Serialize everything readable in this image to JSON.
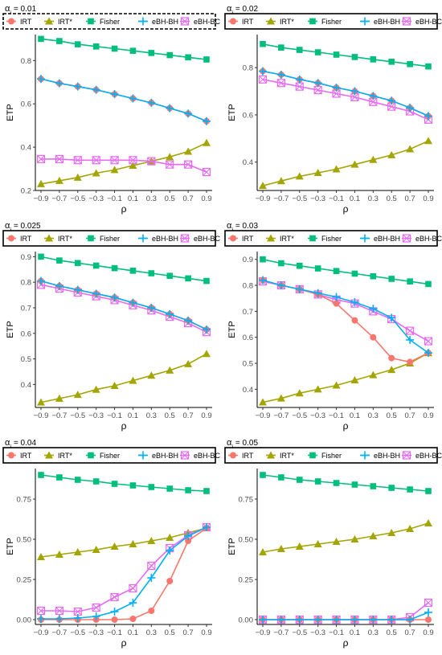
{
  "colors": {
    "IRT": "#F8766D",
    "IRT*": "#A3A500",
    "Fisher": "#00BF7D",
    "eBH-BH": "#00B0F6",
    "eBH-BC": "#E76BF3"
  },
  "legend_items": [
    "IRT",
    "IRT*",
    "Fisher",
    "eBH-BH",
    "eBH-BC"
  ],
  "chart_data": [
    {
      "type": "line",
      "panel_title": "αj = 0.01",
      "xlabel": "ρ",
      "ylabel": "ETP",
      "x": [
        -0.9,
        -0.7,
        -0.5,
        -0.3,
        -0.1,
        0.1,
        0.3,
        0.5,
        0.7,
        0.9
      ],
      "x_tick_labels": [
        "−0.9",
        "−0.7",
        "−0.5",
        "−0.3",
        "−0.1",
        "0.1",
        "0.3",
        "0.5",
        "0.7",
        "0.9"
      ],
      "ylim": [
        0.2,
        0.92
      ],
      "yticks": [
        0.2,
        0.4,
        0.6,
        0.8
      ],
      "y_tick_labels": [
        "0.2",
        "0.4",
        "0.6",
        "0.8"
      ],
      "legend_position": "top",
      "legend_box": "dashed",
      "series": [
        {
          "name": "IRT",
          "values": [
            0.715,
            0.695,
            0.68,
            0.665,
            0.645,
            0.625,
            0.605,
            0.58,
            0.555,
            0.52
          ]
        },
        {
          "name": "IRT*",
          "values": [
            0.23,
            0.245,
            0.26,
            0.28,
            0.295,
            0.315,
            0.335,
            0.355,
            0.38,
            0.42
          ]
        },
        {
          "name": "Fisher",
          "values": [
            0.9,
            0.89,
            0.875,
            0.865,
            0.855,
            0.845,
            0.835,
            0.825,
            0.815,
            0.805
          ]
        },
        {
          "name": "eBH-BH",
          "values": [
            0.715,
            0.695,
            0.68,
            0.665,
            0.645,
            0.625,
            0.605,
            0.58,
            0.555,
            0.52
          ]
        },
        {
          "name": "eBH-BC",
          "values": [
            0.345,
            0.345,
            0.34,
            0.34,
            0.34,
            0.34,
            0.335,
            0.32,
            0.32,
            0.285
          ]
        }
      ]
    },
    {
      "type": "line",
      "panel_title": "αj = 0.02",
      "xlabel": "ρ",
      "ylabel": "ETP",
      "x": [
        -0.9,
        -0.7,
        -0.5,
        -0.3,
        -0.1,
        0.1,
        0.3,
        0.5,
        0.7,
        0.9
      ],
      "x_tick_labels": [
        "−0.9",
        "−0.7",
        "−0.5",
        "−0.3",
        "−0.1",
        "0.1",
        "0.3",
        "0.5",
        "0.7",
        "0.9"
      ],
      "ylim": [
        0.28,
        0.94
      ],
      "yticks": [
        0.4,
        0.6,
        0.8
      ],
      "y_tick_labels": [
        "0.4",
        "0.6",
        "0.8"
      ],
      "legend_position": "top",
      "legend_box": "solid",
      "series": [
        {
          "name": "IRT",
          "values": [
            0.785,
            0.77,
            0.75,
            0.735,
            0.715,
            0.7,
            0.68,
            0.66,
            0.63,
            0.595
          ]
        },
        {
          "name": "IRT*",
          "values": [
            0.3,
            0.32,
            0.34,
            0.355,
            0.37,
            0.39,
            0.41,
            0.43,
            0.455,
            0.49
          ]
        },
        {
          "name": "Fisher",
          "values": [
            0.9,
            0.885,
            0.875,
            0.865,
            0.855,
            0.845,
            0.835,
            0.825,
            0.815,
            0.805
          ]
        },
        {
          "name": "eBH-BH",
          "values": [
            0.785,
            0.77,
            0.75,
            0.735,
            0.715,
            0.7,
            0.68,
            0.66,
            0.63,
            0.595
          ]
        },
        {
          "name": "eBH-BC",
          "values": [
            0.75,
            0.735,
            0.72,
            0.705,
            0.69,
            0.675,
            0.655,
            0.635,
            0.615,
            0.58
          ]
        }
      ]
    },
    {
      "type": "line",
      "panel_title": "αj = 0.025",
      "xlabel": "ρ",
      "ylabel": "ETP",
      "x": [
        -0.9,
        -0.7,
        -0.5,
        -0.3,
        -0.1,
        0.1,
        0.3,
        0.5,
        0.7,
        0.9
      ],
      "x_tick_labels": [
        "−0.9",
        "−0.7",
        "−0.5",
        "−0.3",
        "−0.1",
        "0.1",
        "0.3",
        "0.5",
        "0.7",
        "0.9"
      ],
      "ylim": [
        0.31,
        0.92
      ],
      "yticks": [
        0.4,
        0.5,
        0.6,
        0.7,
        0.8,
        0.9
      ],
      "y_tick_labels": [
        "0.4",
        "0.5",
        "0.6",
        "0.7",
        "0.8",
        "0.9"
      ],
      "legend_position": "top",
      "legend_box": "solid",
      "series": [
        {
          "name": "IRT",
          "values": [
            0.805,
            0.785,
            0.77,
            0.755,
            0.74,
            0.72,
            0.7,
            0.675,
            0.65,
            0.615
          ]
        },
        {
          "name": "IRT*",
          "values": [
            0.33,
            0.345,
            0.36,
            0.38,
            0.395,
            0.415,
            0.435,
            0.455,
            0.48,
            0.52
          ]
        },
        {
          "name": "Fisher",
          "values": [
            0.9,
            0.885,
            0.875,
            0.865,
            0.855,
            0.845,
            0.835,
            0.825,
            0.815,
            0.805
          ]
        },
        {
          "name": "eBH-BH",
          "values": [
            0.805,
            0.785,
            0.77,
            0.755,
            0.74,
            0.72,
            0.7,
            0.675,
            0.65,
            0.615
          ]
        },
        {
          "name": "eBH-BC",
          "values": [
            0.79,
            0.775,
            0.76,
            0.745,
            0.73,
            0.71,
            0.69,
            0.665,
            0.64,
            0.605
          ]
        }
      ]
    },
    {
      "type": "line",
      "panel_title": "αj = 0.03",
      "xlabel": "ρ",
      "ylabel": "ETP",
      "x": [
        -0.9,
        -0.7,
        -0.5,
        -0.3,
        -0.1,
        0.1,
        0.3,
        0.5,
        0.7,
        0.9
      ],
      "x_tick_labels": [
        "−0.9",
        "−0.7",
        "−0.5",
        "−0.3",
        "−0.1",
        "0.1",
        "0.3",
        "0.5",
        "0.7",
        "0.9"
      ],
      "ylim": [
        0.33,
        0.93
      ],
      "yticks": [
        0.4,
        0.5,
        0.6,
        0.7,
        0.8,
        0.9
      ],
      "y_tick_labels": [
        "0.4",
        "0.5",
        "0.6",
        "0.7",
        "0.8",
        "0.9"
      ],
      "legend_position": "top",
      "legend_box": "solid",
      "series": [
        {
          "name": "IRT",
          "values": [
            0.82,
            0.8,
            0.785,
            0.765,
            0.73,
            0.665,
            0.6,
            0.52,
            0.505,
            0.54
          ]
        },
        {
          "name": "IRT*",
          "values": [
            0.35,
            0.365,
            0.385,
            0.4,
            0.415,
            0.435,
            0.455,
            0.475,
            0.5,
            0.54
          ]
        },
        {
          "name": "Fisher",
          "values": [
            0.9,
            0.885,
            0.875,
            0.865,
            0.855,
            0.845,
            0.835,
            0.825,
            0.815,
            0.805
          ]
        },
        {
          "name": "eBH-BH",
          "values": [
            0.82,
            0.8,
            0.785,
            0.77,
            0.755,
            0.735,
            0.71,
            0.675,
            0.59,
            0.54
          ]
        },
        {
          "name": "eBH-BC",
          "values": [
            0.815,
            0.8,
            0.785,
            0.765,
            0.745,
            0.73,
            0.7,
            0.67,
            0.625,
            0.585
          ]
        }
      ]
    },
    {
      "type": "line",
      "panel_title": "αj = 0.04",
      "xlabel": "ρ",
      "ylabel": "ETP",
      "x": [
        -0.9,
        -0.7,
        -0.5,
        -0.3,
        -0.1,
        0.1,
        0.3,
        0.5,
        0.7,
        0.9
      ],
      "x_tick_labels": [
        "−0.9",
        "−0.7",
        "−0.5",
        "−0.3",
        "−0.1",
        "0.1",
        "0.3",
        "0.5",
        "0.7",
        "0.9"
      ],
      "ylim": [
        -0.03,
        0.94
      ],
      "yticks": [
        0,
        0.25,
        0.5,
        0.75
      ],
      "y_tick_labels": [
        "0.00",
        "0.25",
        "0.50",
        "0.75"
      ],
      "legend_position": "top",
      "legend_box": "solid",
      "series": [
        {
          "name": "IRT",
          "values": [
            0.0,
            0.0,
            0.0,
            0.0,
            0.0,
            0.005,
            0.055,
            0.24,
            0.49,
            0.57
          ]
        },
        {
          "name": "IRT*",
          "values": [
            0.39,
            0.405,
            0.42,
            0.435,
            0.455,
            0.47,
            0.49,
            0.51,
            0.54,
            0.57
          ]
        },
        {
          "name": "Fisher",
          "values": [
            0.9,
            0.885,
            0.87,
            0.86,
            0.845,
            0.835,
            0.825,
            0.815,
            0.805,
            0.8
          ]
        },
        {
          "name": "eBH-BH",
          "values": [
            0.005,
            0.005,
            0.01,
            0.02,
            0.05,
            0.105,
            0.26,
            0.43,
            0.52,
            0.575
          ]
        },
        {
          "name": "eBH-BC",
          "values": [
            0.055,
            0.055,
            0.05,
            0.075,
            0.14,
            0.195,
            0.335,
            0.445,
            0.525,
            0.575
          ]
        }
      ]
    },
    {
      "type": "line",
      "panel_title": "αj = 0.05",
      "xlabel": "ρ",
      "ylabel": "ETP",
      "x": [
        -0.9,
        -0.7,
        -0.5,
        -0.3,
        -0.1,
        0.1,
        0.3,
        0.5,
        0.7,
        0.9
      ],
      "x_tick_labels": [
        "−0.9",
        "−0.7",
        "−0.5",
        "−0.3",
        "−0.1",
        "0.1",
        "0.3",
        "0.5",
        "0.7",
        "0.9"
      ],
      "ylim": [
        -0.03,
        0.94
      ],
      "yticks": [
        0,
        0.25,
        0.5,
        0.75
      ],
      "y_tick_labels": [
        "0.00",
        "0.25",
        "0.50",
        "0.75"
      ],
      "legend_position": "top",
      "legend_box": "solid",
      "series": [
        {
          "name": "IRT",
          "values": [
            0.0,
            0.0,
            0.0,
            0.0,
            0.0,
            0.0,
            0.0,
            0.0,
            0.0,
            0.0
          ]
        },
        {
          "name": "IRT*",
          "values": [
            0.42,
            0.44,
            0.455,
            0.47,
            0.485,
            0.5,
            0.52,
            0.54,
            0.565,
            0.6
          ]
        },
        {
          "name": "Fisher",
          "values": [
            0.9,
            0.885,
            0.87,
            0.86,
            0.85,
            0.84,
            0.83,
            0.82,
            0.81,
            0.8
          ]
        },
        {
          "name": "eBH-BH",
          "values": [
            0.0,
            0.0,
            0.0,
            0.0,
            0.0,
            0.0,
            0.0,
            0.0,
            0.0,
            0.045
          ]
        },
        {
          "name": "eBH-BC",
          "values": [
            0.0,
            0.0,
            0.0,
            0.0,
            0.0,
            0.0,
            0.0,
            0.0,
            0.015,
            0.105
          ]
        }
      ]
    }
  ]
}
